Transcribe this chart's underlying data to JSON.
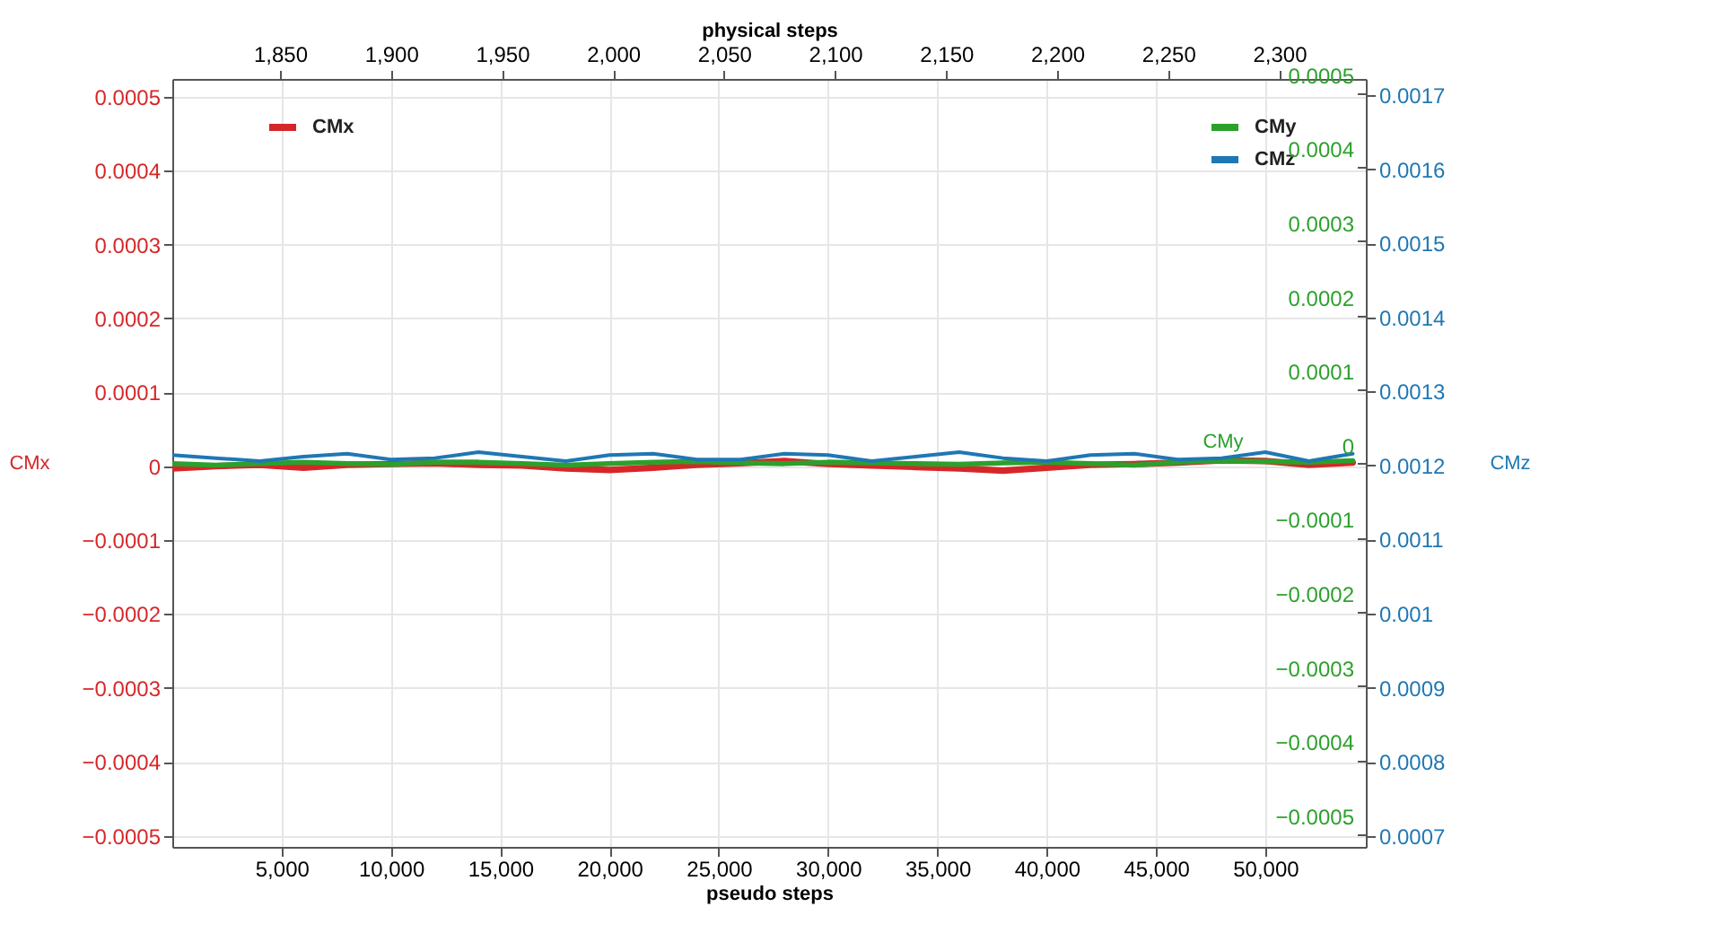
{
  "chart_data": {
    "type": "line",
    "xlabel": "pseudo steps",
    "x2label": "physical steps",
    "ylabel": "CMx",
    "y2label": "CMy",
    "y3label": "CMz",
    "x": [
      0,
      2000,
      4000,
      6000,
      8000,
      10000,
      12000,
      14000,
      16000,
      18000,
      20000,
      22000,
      24000,
      26000,
      28000,
      30000,
      32000,
      34000,
      36000,
      38000,
      40000,
      42000,
      44000,
      46000,
      48000,
      50000,
      52000,
      54000
    ],
    "xlim": [
      0,
      54600
    ],
    "xticks": [
      {
        "value": 5000,
        "label": "5,000"
      },
      {
        "value": 10000,
        "label": "10,000"
      },
      {
        "value": 15000,
        "label": "15,000"
      },
      {
        "value": 20000,
        "label": "20,000"
      },
      {
        "value": 25000,
        "label": "25,000"
      },
      {
        "value": 30000,
        "label": "30,000"
      },
      {
        "value": 35000,
        "label": "35,000"
      },
      {
        "value": 40000,
        "label": "40,000"
      },
      {
        "value": 45000,
        "label": "45,000"
      },
      {
        "value": 50000,
        "label": "50,000"
      }
    ],
    "x2lim": [
      1801.5,
      2339
    ],
    "x2ticks": [
      {
        "value": 1850,
        "label": "1,850"
      },
      {
        "value": 1900,
        "label": "1,900"
      },
      {
        "value": 1950,
        "label": "1,950"
      },
      {
        "value": 2000,
        "label": "2,000"
      },
      {
        "value": 2050,
        "label": "2,050"
      },
      {
        "value": 2100,
        "label": "2,100"
      },
      {
        "value": 2150,
        "label": "2,150"
      },
      {
        "value": 2200,
        "label": "2,200"
      },
      {
        "value": 2250,
        "label": "2,250"
      },
      {
        "value": 2300,
        "label": "2,300"
      }
    ],
    "ylim": [
      -0.000515,
      0.000524
    ],
    "yticks": [
      -0.0005,
      -0.0004,
      -0.0003,
      -0.0002,
      -0.0001,
      0,
      0.0001,
      0.0002,
      0.0003,
      0.0004,
      0.0005
    ],
    "y2lim": [
      -0.000517,
      0.000519
    ],
    "y2ticks": [
      -0.0005,
      -0.0004,
      -0.0003,
      -0.0002,
      -0.0001,
      0,
      0.0001,
      0.0002,
      0.0003,
      0.0004,
      0.0005
    ],
    "y3lim": [
      0.000685,
      0.001722
    ],
    "y3ticks": [
      0.0007,
      0.0008,
      0.0009,
      0.001,
      0.0011,
      0.0012,
      0.0013,
      0.0014,
      0.0015,
      0.0016,
      0.0017
    ],
    "grid": true,
    "legend": "top",
    "series": [
      {
        "name": "CMx",
        "color": "#d62728",
        "axis": "y",
        "values": [
          -3e-06,
          0,
          2e-06,
          -2e-06,
          2e-06,
          3e-06,
          4e-06,
          2e-06,
          1e-06,
          -3e-06,
          -5e-06,
          -2e-06,
          2e-06,
          4e-06,
          7e-06,
          3e-06,
          1e-06,
          -1e-06,
          -3e-06,
          -6e-06,
          -2e-06,
          2e-06,
          3e-06,
          5e-06,
          8e-06,
          7e-06,
          2e-06,
          5e-06
        ]
      },
      {
        "name": "CMy",
        "color": "#2ca02c",
        "axis": "y2",
        "values": [
          0,
          -2e-06,
          0,
          2e-06,
          0,
          -1e-06,
          2e-06,
          2e-06,
          0,
          -2e-06,
          0,
          2e-06,
          3e-06,
          1e-06,
          0,
          2e-06,
          1e-06,
          0,
          -1e-06,
          1e-06,
          2e-06,
          0,
          -2e-06,
          2e-06,
          4e-06,
          3e-06,
          2e-06,
          4e-06
        ]
      },
      {
        "name": "CMz",
        "color": "#1f77b4",
        "axis": "y3",
        "values": [
          0.001214,
          0.00121,
          0.001206,
          0.001212,
          0.001216,
          0.001208,
          0.00121,
          0.001218,
          0.001212,
          0.001206,
          0.001214,
          0.001216,
          0.001208,
          0.001208,
          0.001216,
          0.001214,
          0.001206,
          0.001212,
          0.001218,
          0.00121,
          0.001206,
          0.001214,
          0.001216,
          0.001208,
          0.00121,
          0.001218,
          0.001206,
          0.001216
        ]
      }
    ]
  }
}
